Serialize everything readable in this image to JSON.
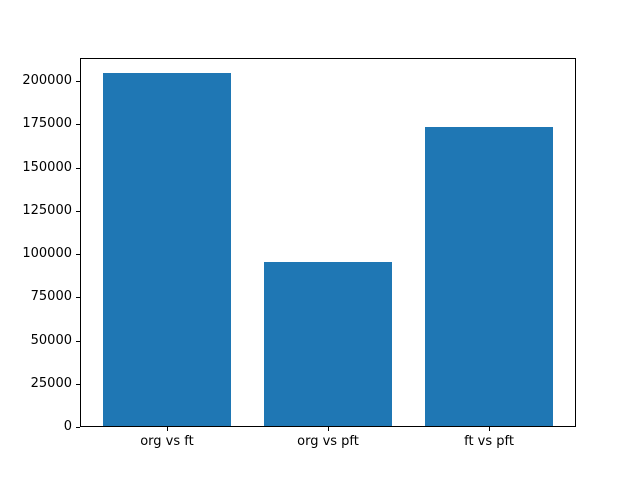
{
  "figure": {
    "background": "#ffffff",
    "axes_edge_color": "#000000",
    "text_color": "#000000"
  },
  "chart_data": {
    "type": "bar",
    "title": "",
    "xlabel": "",
    "ylabel": "",
    "categories": [
      "org vs ft",
      "org vs pft",
      "ft vs pft"
    ],
    "values": [
      204000,
      95000,
      173000
    ],
    "bar_color": "#1f77b4",
    "yticks": [
      0,
      25000,
      50000,
      75000,
      100000,
      125000,
      150000,
      175000,
      200000
    ],
    "ylim": [
      0,
      213300
    ],
    "grid": false,
    "legend": null
  }
}
